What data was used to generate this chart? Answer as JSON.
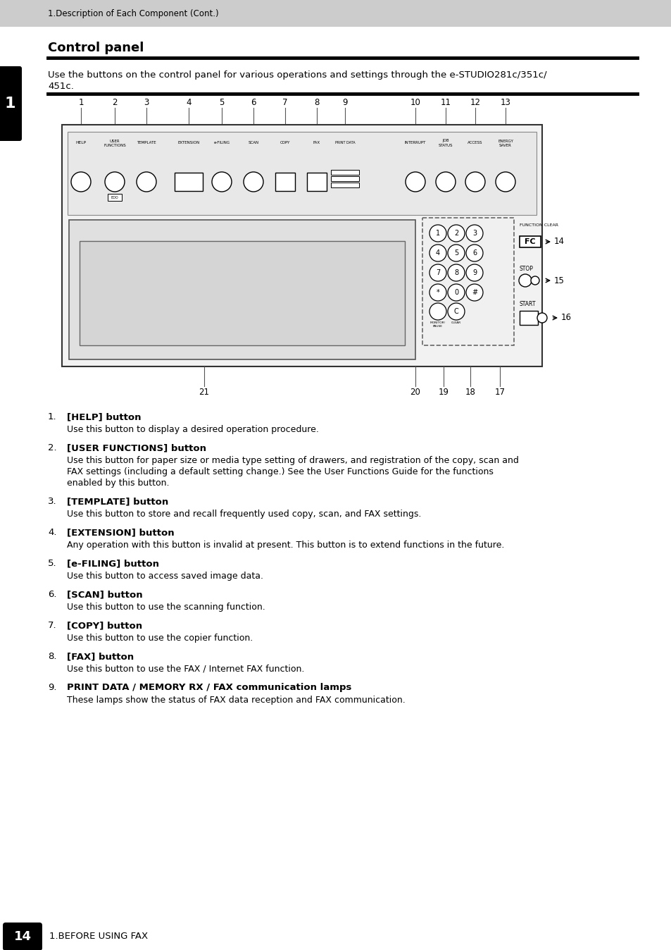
{
  "bg_color": "#ffffff",
  "header_bg": "#cccccc",
  "header_text": "1.Description of Each Component (Cont.)",
  "footer_page": "14",
  "footer_text": "1.BEFORE USING FAX",
  "section_title": "Control panel",
  "intro_line1": "Use the buttons on the control panel for various operations and settings through the e-STUDIO281c/351c/",
  "intro_line2": "451c.",
  "side_tab_text": "1",
  "top_labels": [
    "1",
    "2",
    "3",
    "4",
    "5",
    "6",
    "7",
    "8",
    "9",
    "10",
    "11",
    "12",
    "13"
  ],
  "bottom_labels": [
    "21",
    "20",
    "19",
    "18",
    "17"
  ],
  "right_labels": [
    "14",
    "15",
    "16"
  ],
  "items": [
    {
      "num": "1.",
      "bold": "[HELP] button",
      "text": "Use this button to display a desired operation procedure.",
      "extra": []
    },
    {
      "num": "2.",
      "bold": "[USER FUNCTIONS] button",
      "text": "Use this button for paper size or media type setting of drawers, and registration of the copy, scan and",
      "extra": [
        "FAX settings (including a default setting change.) See the User Functions Guide for the functions",
        "enabled by this button."
      ]
    },
    {
      "num": "3.",
      "bold": "[TEMPLATE] button",
      "text": "Use this button to store and recall frequently used copy, scan, and FAX settings.",
      "extra": []
    },
    {
      "num": "4.",
      "bold": "[EXTENSION] button",
      "text": "Any operation with this button is invalid at present. This button is to extend functions in the future.",
      "extra": []
    },
    {
      "num": "5.",
      "bold": "[e-FILING] button",
      "text": "Use this button to access saved image data.",
      "extra": []
    },
    {
      "num": "6.",
      "bold": "[SCAN] button",
      "text": "Use this button to use the scanning function.",
      "extra": []
    },
    {
      "num": "7.",
      "bold": "[COPY] button",
      "text": "Use this button to use the copier function.",
      "extra": []
    },
    {
      "num": "8.",
      "bold": "[FAX] button",
      "text": "Use this button to use the FAX / Internet FAX function.",
      "extra": []
    },
    {
      "num": "9.",
      "bold": "PRINT DATA / MEMORY RX / FAX communication lamps",
      "text": "These lamps show the status of FAX data reception and FAX communication.",
      "extra": []
    }
  ]
}
